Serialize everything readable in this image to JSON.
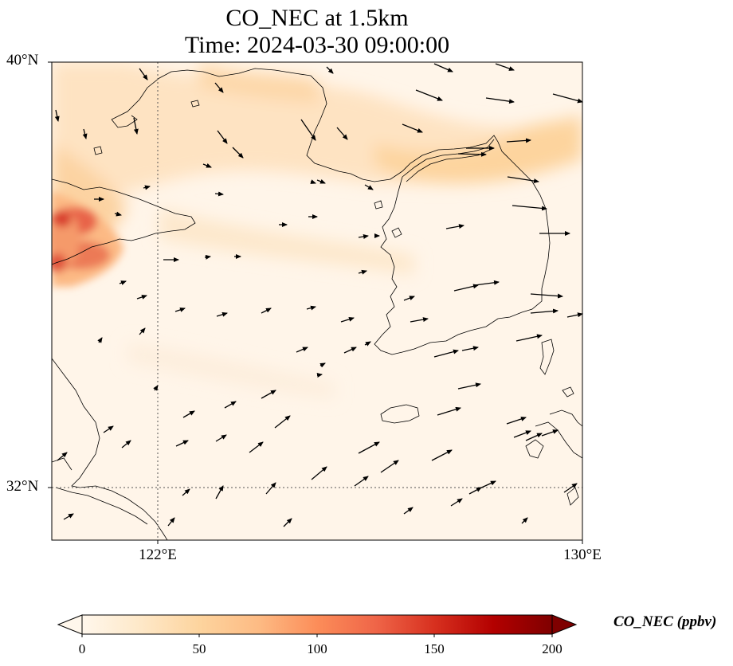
{
  "title": {
    "line1": "CO_NEC at 1.5km",
    "line2": "Time: 2024-03-30 09:00:00"
  },
  "map": {
    "extent": {
      "lon_min": 120.0,
      "lon_max": 130.0,
      "lat_min": 31.0,
      "lat_max": 40.0
    },
    "lat_ticks": [
      {
        "label": "40°N",
        "lat": 40
      },
      {
        "label": "32°N",
        "lat": 32
      }
    ],
    "lon_ticks": [
      {
        "label": "122°E",
        "lon": 122
      },
      {
        "label": "130°E",
        "lon": 130
      }
    ],
    "gridlines": "dotted at 122°E and 32°N",
    "features": "coastlines of eastern China, Yellow Sea, Korean Peninsula, Jeju island, western Japan",
    "wind_vectors": "black arrows, mostly westerly/south-westerly flow toward north-east"
  },
  "colorbar": {
    "label": "CO_NEC (ppbv)",
    "ticks": [
      "0",
      "50",
      "100",
      "150",
      "200"
    ],
    "min": 0,
    "max": 200,
    "colormap": "OrRd",
    "extend": "both",
    "colors": [
      "#fff7ec",
      "#fee8c8",
      "#fdd49e",
      "#fdbb84",
      "#fc8d59",
      "#ef6548",
      "#d7301f",
      "#b30000",
      "#7f0000"
    ]
  }
}
